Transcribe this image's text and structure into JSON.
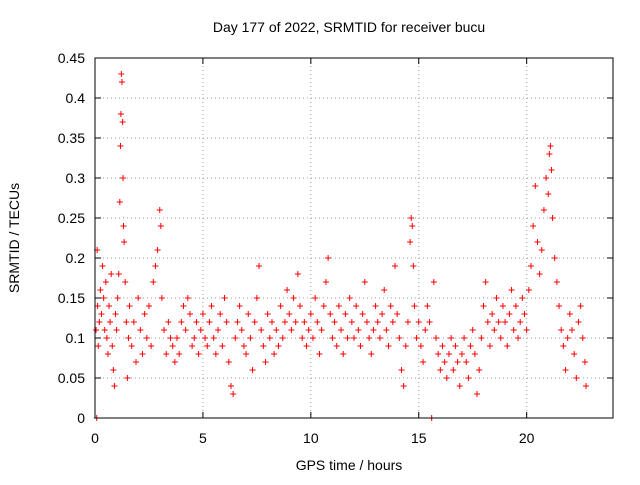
{
  "chart_data": {
    "type": "scatter",
    "title": "Day 177 of 2022, SRMTID for receiver bucu",
    "xlabel": "GPS time / hours",
    "ylabel": "SRMTID / TECUs",
    "xlim": [
      0,
      24
    ],
    "ylim": [
      0,
      0.45
    ],
    "grid": true,
    "marker": "plus",
    "color": "#ff0000",
    "x_ticks": [
      {
        "value": 0,
        "label": "0"
      },
      {
        "value": 5,
        "label": "5"
      },
      {
        "value": 10,
        "label": "10"
      },
      {
        "value": 15,
        "label": "15"
      },
      {
        "value": 20,
        "label": "20"
      }
    ],
    "y_ticks": [
      {
        "value": 0,
        "label": "0"
      },
      {
        "value": 0.05,
        "label": "0.05"
      },
      {
        "value": 0.1,
        "label": "0.1"
      },
      {
        "value": 0.15,
        "label": "0.15"
      },
      {
        "value": 0.2,
        "label": "0.2"
      },
      {
        "value": 0.25,
        "label": "0.25"
      },
      {
        "value": 0.3,
        "label": "0.3"
      },
      {
        "value": 0.35,
        "label": "0.35"
      },
      {
        "value": 0.4,
        "label": "0.4"
      },
      {
        "value": 0.45,
        "label": "0.45"
      }
    ],
    "series": [
      {
        "name": "SRMTID",
        "points": [
          [
            0.05,
            0.11
          ],
          [
            0.08,
            0.0
          ],
          [
            0.1,
            0.21
          ],
          [
            0.12,
            0.14
          ],
          [
            0.15,
            0.09
          ],
          [
            0.2,
            0.12
          ],
          [
            0.25,
            0.16
          ],
          [
            0.3,
            0.13
          ],
          [
            0.35,
            0.19
          ],
          [
            0.4,
            0.15
          ],
          [
            0.45,
            0.11
          ],
          [
            0.5,
            0.17
          ],
          [
            0.55,
            0.1
          ],
          [
            0.6,
            0.08
          ],
          [
            0.65,
            0.14
          ],
          [
            0.7,
            0.12
          ],
          [
            0.75,
            0.18
          ],
          [
            0.8,
            0.09
          ],
          [
            0.85,
            0.06
          ],
          [
            0.9,
            0.04
          ],
          [
            0.95,
            0.13
          ],
          [
            1.0,
            0.11
          ],
          [
            1.05,
            0.15
          ],
          [
            1.1,
            0.18
          ],
          [
            1.15,
            0.27
          ],
          [
            1.18,
            0.34
          ],
          [
            1.2,
            0.38
          ],
          [
            1.22,
            0.43
          ],
          [
            1.25,
            0.42
          ],
          [
            1.28,
            0.37
          ],
          [
            1.3,
            0.3
          ],
          [
            1.32,
            0.24
          ],
          [
            1.35,
            0.22
          ],
          [
            1.4,
            0.17
          ],
          [
            1.45,
            0.12
          ],
          [
            1.5,
            0.05
          ],
          [
            1.55,
            0.1
          ],
          [
            1.6,
            0.14
          ],
          [
            1.7,
            0.09
          ],
          [
            1.8,
            0.12
          ],
          [
            1.9,
            0.07
          ],
          [
            2.0,
            0.15
          ],
          [
            2.1,
            0.11
          ],
          [
            2.2,
            0.08
          ],
          [
            2.3,
            0.13
          ],
          [
            2.4,
            0.1
          ],
          [
            2.5,
            0.14
          ],
          [
            2.6,
            0.09
          ],
          [
            2.7,
            0.17
          ],
          [
            2.8,
            0.19
          ],
          [
            2.9,
            0.21
          ],
          [
            3.0,
            0.26
          ],
          [
            3.05,
            0.24
          ],
          [
            3.1,
            0.15
          ],
          [
            3.2,
            0.11
          ],
          [
            3.3,
            0.08
          ],
          [
            3.4,
            0.12
          ],
          [
            3.5,
            0.1
          ],
          [
            3.6,
            0.09
          ],
          [
            3.7,
            0.07
          ],
          [
            3.8,
            0.1
          ],
          [
            3.9,
            0.08
          ],
          [
            4.0,
            0.12
          ],
          [
            4.1,
            0.14
          ],
          [
            4.2,
            0.11
          ],
          [
            4.3,
            0.15
          ],
          [
            4.4,
            0.13
          ],
          [
            4.5,
            0.09
          ],
          [
            4.6,
            0.1
          ],
          [
            4.7,
            0.12
          ],
          [
            4.8,
            0.08
          ],
          [
            4.9,
            0.11
          ],
          [
            5.0,
            0.13
          ],
          [
            5.1,
            0.1
          ],
          [
            5.2,
            0.09
          ],
          [
            5.3,
            0.12
          ],
          [
            5.4,
            0.14
          ],
          [
            5.5,
            0.1
          ],
          [
            5.6,
            0.08
          ],
          [
            5.7,
            0.11
          ],
          [
            5.8,
            0.13
          ],
          [
            5.9,
            0.09
          ],
          [
            6.0,
            0.15
          ],
          [
            6.1,
            0.12
          ],
          [
            6.2,
            0.07
          ],
          [
            6.3,
            0.04
          ],
          [
            6.4,
            0.03
          ],
          [
            6.5,
            0.1
          ],
          [
            6.6,
            0.12
          ],
          [
            6.7,
            0.14
          ],
          [
            6.8,
            0.11
          ],
          [
            6.9,
            0.09
          ],
          [
            7.0,
            0.08
          ],
          [
            7.1,
            0.13
          ],
          [
            7.2,
            0.1
          ],
          [
            7.3,
            0.06
          ],
          [
            7.4,
            0.12
          ],
          [
            7.5,
            0.15
          ],
          [
            7.6,
            0.19
          ],
          [
            7.7,
            0.11
          ],
          [
            7.8,
            0.09
          ],
          [
            7.9,
            0.07
          ],
          [
            8.0,
            0.13
          ],
          [
            8.1,
            0.1
          ],
          [
            8.2,
            0.12
          ],
          [
            8.3,
            0.08
          ],
          [
            8.4,
            0.11
          ],
          [
            8.5,
            0.09
          ],
          [
            8.6,
            0.14
          ],
          [
            8.7,
            0.1
          ],
          [
            8.8,
            0.12
          ],
          [
            8.9,
            0.16
          ],
          [
            9.0,
            0.13
          ],
          [
            9.1,
            0.11
          ],
          [
            9.2,
            0.15
          ],
          [
            9.3,
            0.12
          ],
          [
            9.4,
            0.18
          ],
          [
            9.5,
            0.14
          ],
          [
            9.6,
            0.1
          ],
          [
            9.7,
            0.12
          ],
          [
            9.8,
            0.09
          ],
          [
            9.9,
            0.11
          ],
          [
            10.0,
            0.13
          ],
          [
            10.1,
            0.1
          ],
          [
            10.2,
            0.15
          ],
          [
            10.3,
            0.12
          ],
          [
            10.4,
            0.08
          ],
          [
            10.5,
            0.11
          ],
          [
            10.6,
            0.14
          ],
          [
            10.7,
            0.17
          ],
          [
            10.8,
            0.2
          ],
          [
            10.9,
            0.13
          ],
          [
            11.0,
            0.1
          ],
          [
            11.1,
            0.12
          ],
          [
            11.2,
            0.09
          ],
          [
            11.3,
            0.14
          ],
          [
            11.4,
            0.11
          ],
          [
            11.5,
            0.08
          ],
          [
            11.6,
            0.13
          ],
          [
            11.7,
            0.1
          ],
          [
            11.8,
            0.15
          ],
          [
            11.9,
            0.12
          ],
          [
            12.0,
            0.1
          ],
          [
            12.1,
            0.14
          ],
          [
            12.2,
            0.11
          ],
          [
            12.3,
            0.09
          ],
          [
            12.4,
            0.13
          ],
          [
            12.5,
            0.17
          ],
          [
            12.6,
            0.12
          ],
          [
            12.7,
            0.1
          ],
          [
            12.8,
            0.08
          ],
          [
            12.9,
            0.11
          ],
          [
            13.0,
            0.14
          ],
          [
            13.1,
            0.12
          ],
          [
            13.2,
            0.1
          ],
          [
            13.3,
            0.13
          ],
          [
            13.4,
            0.16
          ],
          [
            13.5,
            0.11
          ],
          [
            13.6,
            0.09
          ],
          [
            13.7,
            0.14
          ],
          [
            13.8,
            0.12
          ],
          [
            13.9,
            0.19
          ],
          [
            14.0,
            0.13
          ],
          [
            14.1,
            0.1
          ],
          [
            14.2,
            0.06
          ],
          [
            14.3,
            0.04
          ],
          [
            14.4,
            0.09
          ],
          [
            14.5,
            0.12
          ],
          [
            14.6,
            0.22
          ],
          [
            14.65,
            0.25
          ],
          [
            14.7,
            0.24
          ],
          [
            14.75,
            0.19
          ],
          [
            14.8,
            0.14
          ],
          [
            14.9,
            0.1
          ],
          [
            15.0,
            0.12
          ],
          [
            15.1,
            0.09
          ],
          [
            15.2,
            0.07
          ],
          [
            15.3,
            0.11
          ],
          [
            15.4,
            0.14
          ],
          [
            15.5,
            0.12
          ],
          [
            15.6,
            0.0
          ],
          [
            15.7,
            0.17
          ],
          [
            15.8,
            0.1
          ],
          [
            15.9,
            0.08
          ],
          [
            16.0,
            0.06
          ],
          [
            16.1,
            0.09
          ],
          [
            16.2,
            0.07
          ],
          [
            16.3,
            0.05
          ],
          [
            16.4,
            0.08
          ],
          [
            16.5,
            0.1
          ],
          [
            16.6,
            0.06
          ],
          [
            16.7,
            0.09
          ],
          [
            16.8,
            0.07
          ],
          [
            16.9,
            0.04
          ],
          [
            17.0,
            0.08
          ],
          [
            17.1,
            0.1
          ],
          [
            17.2,
            0.07
          ],
          [
            17.3,
            0.05
          ],
          [
            17.4,
            0.09
          ],
          [
            17.5,
            0.11
          ],
          [
            17.6,
            0.08
          ],
          [
            17.7,
            0.03
          ],
          [
            17.8,
            0.06
          ],
          [
            17.9,
            0.1
          ],
          [
            18.0,
            0.14
          ],
          [
            18.1,
            0.17
          ],
          [
            18.2,
            0.12
          ],
          [
            18.3,
            0.09
          ],
          [
            18.4,
            0.13
          ],
          [
            18.5,
            0.11
          ],
          [
            18.6,
            0.15
          ],
          [
            18.7,
            0.12
          ],
          [
            18.8,
            0.1
          ],
          [
            18.9,
            0.14
          ],
          [
            19.0,
            0.12
          ],
          [
            19.1,
            0.09
          ],
          [
            19.2,
            0.13
          ],
          [
            19.3,
            0.16
          ],
          [
            19.4,
            0.11
          ],
          [
            19.5,
            0.14
          ],
          [
            19.6,
            0.1
          ],
          [
            19.7,
            0.12
          ],
          [
            19.8,
            0.15
          ],
          [
            19.9,
            0.13
          ],
          [
            20.0,
            0.11
          ],
          [
            20.1,
            0.16
          ],
          [
            20.2,
            0.19
          ],
          [
            20.3,
            0.24
          ],
          [
            20.4,
            0.29
          ],
          [
            20.5,
            0.22
          ],
          [
            20.6,
            0.18
          ],
          [
            20.7,
            0.21
          ],
          [
            20.8,
            0.26
          ],
          [
            20.9,
            0.3
          ],
          [
            21.0,
            0.28
          ],
          [
            21.05,
            0.33
          ],
          [
            21.1,
            0.34
          ],
          [
            21.15,
            0.31
          ],
          [
            21.2,
            0.25
          ],
          [
            21.3,
            0.2
          ],
          [
            21.4,
            0.17
          ],
          [
            21.5,
            0.14
          ],
          [
            21.6,
            0.11
          ],
          [
            21.7,
            0.09
          ],
          [
            21.8,
            0.06
          ],
          [
            21.9,
            0.1
          ],
          [
            22.0,
            0.13
          ],
          [
            22.1,
            0.11
          ],
          [
            22.2,
            0.08
          ],
          [
            22.3,
            0.05
          ],
          [
            22.4,
            0.12
          ],
          [
            22.5,
            0.14
          ],
          [
            22.6,
            0.1
          ],
          [
            22.7,
            0.07
          ],
          [
            22.75,
            0.04
          ]
        ]
      }
    ]
  }
}
